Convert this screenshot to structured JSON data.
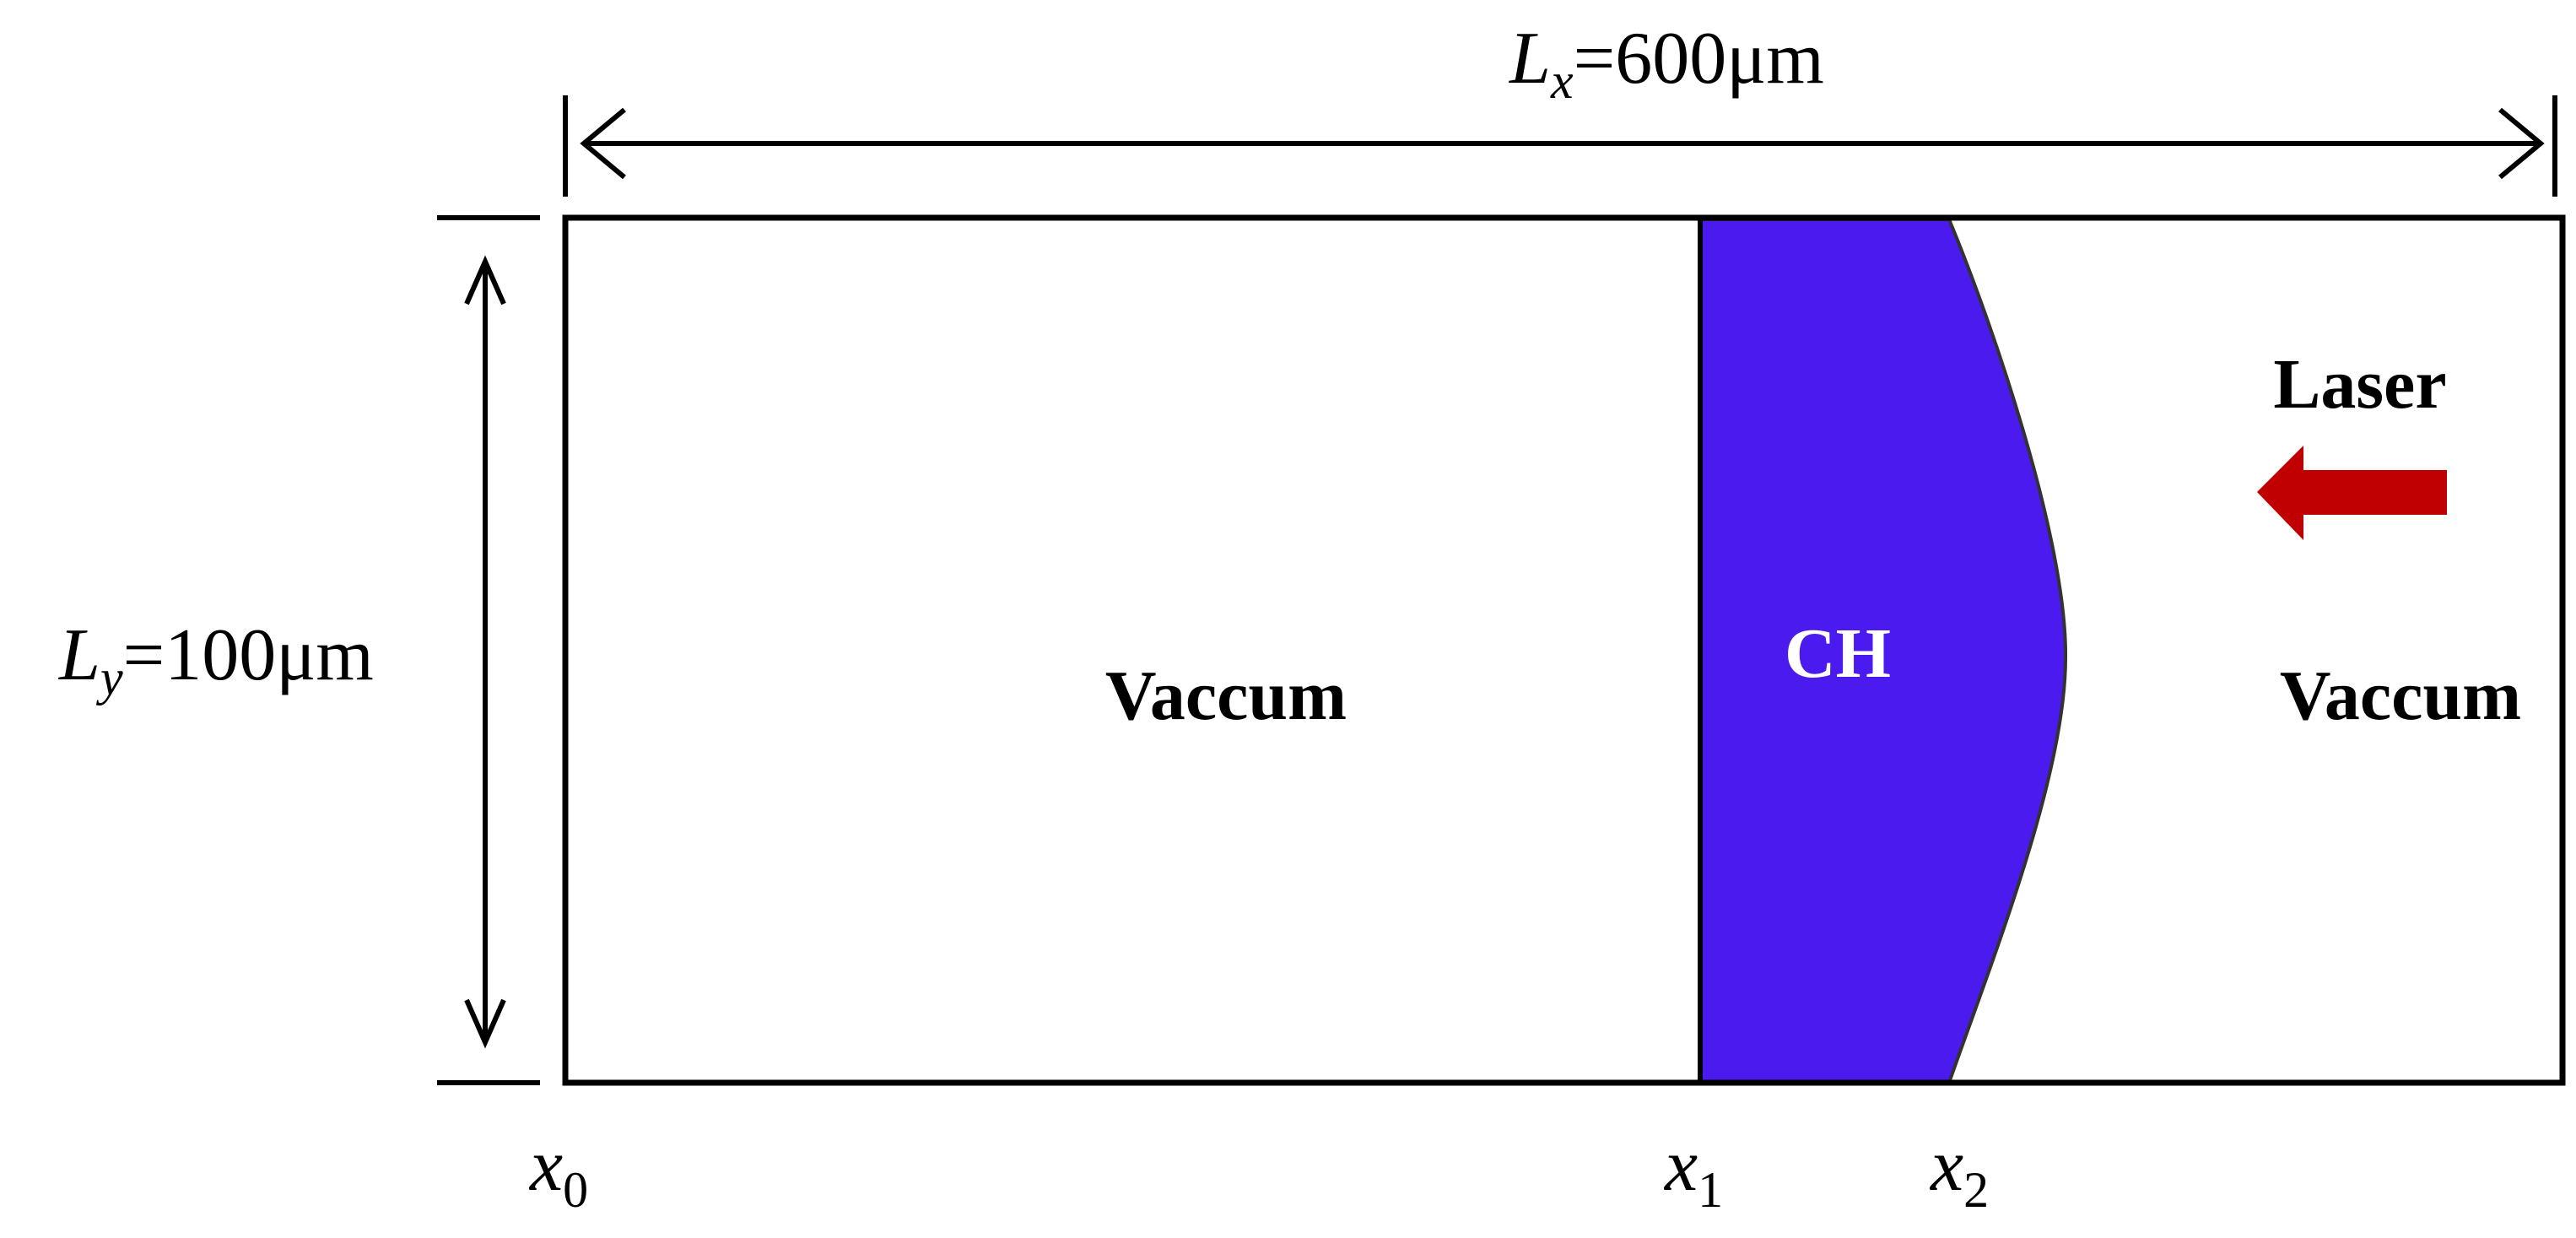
{
  "colors": {
    "target": "#4b1aee",
    "laser_arrow": "#c00000",
    "lines": "#000000",
    "target_label": "#ffffff",
    "background": "#ffffff"
  },
  "dimensions": {
    "lx": {
      "symbol": "L",
      "subscript": "x",
      "value": "=600μm"
    },
    "ly": {
      "symbol": "L",
      "subscript": "y",
      "value": "=100μm"
    }
  },
  "regions": {
    "vacuum_left": "Vaccum",
    "target": "CH",
    "vacuum_right": "Vaccum"
  },
  "laser": {
    "label": "Laser",
    "direction": "left",
    "icon": "arrow-left-icon"
  },
  "coordinates": [
    {
      "symbol": "x",
      "subscript": "0"
    },
    {
      "symbol": "x",
      "subscript": "1"
    },
    {
      "symbol": "x",
      "subscript": "2"
    }
  ]
}
